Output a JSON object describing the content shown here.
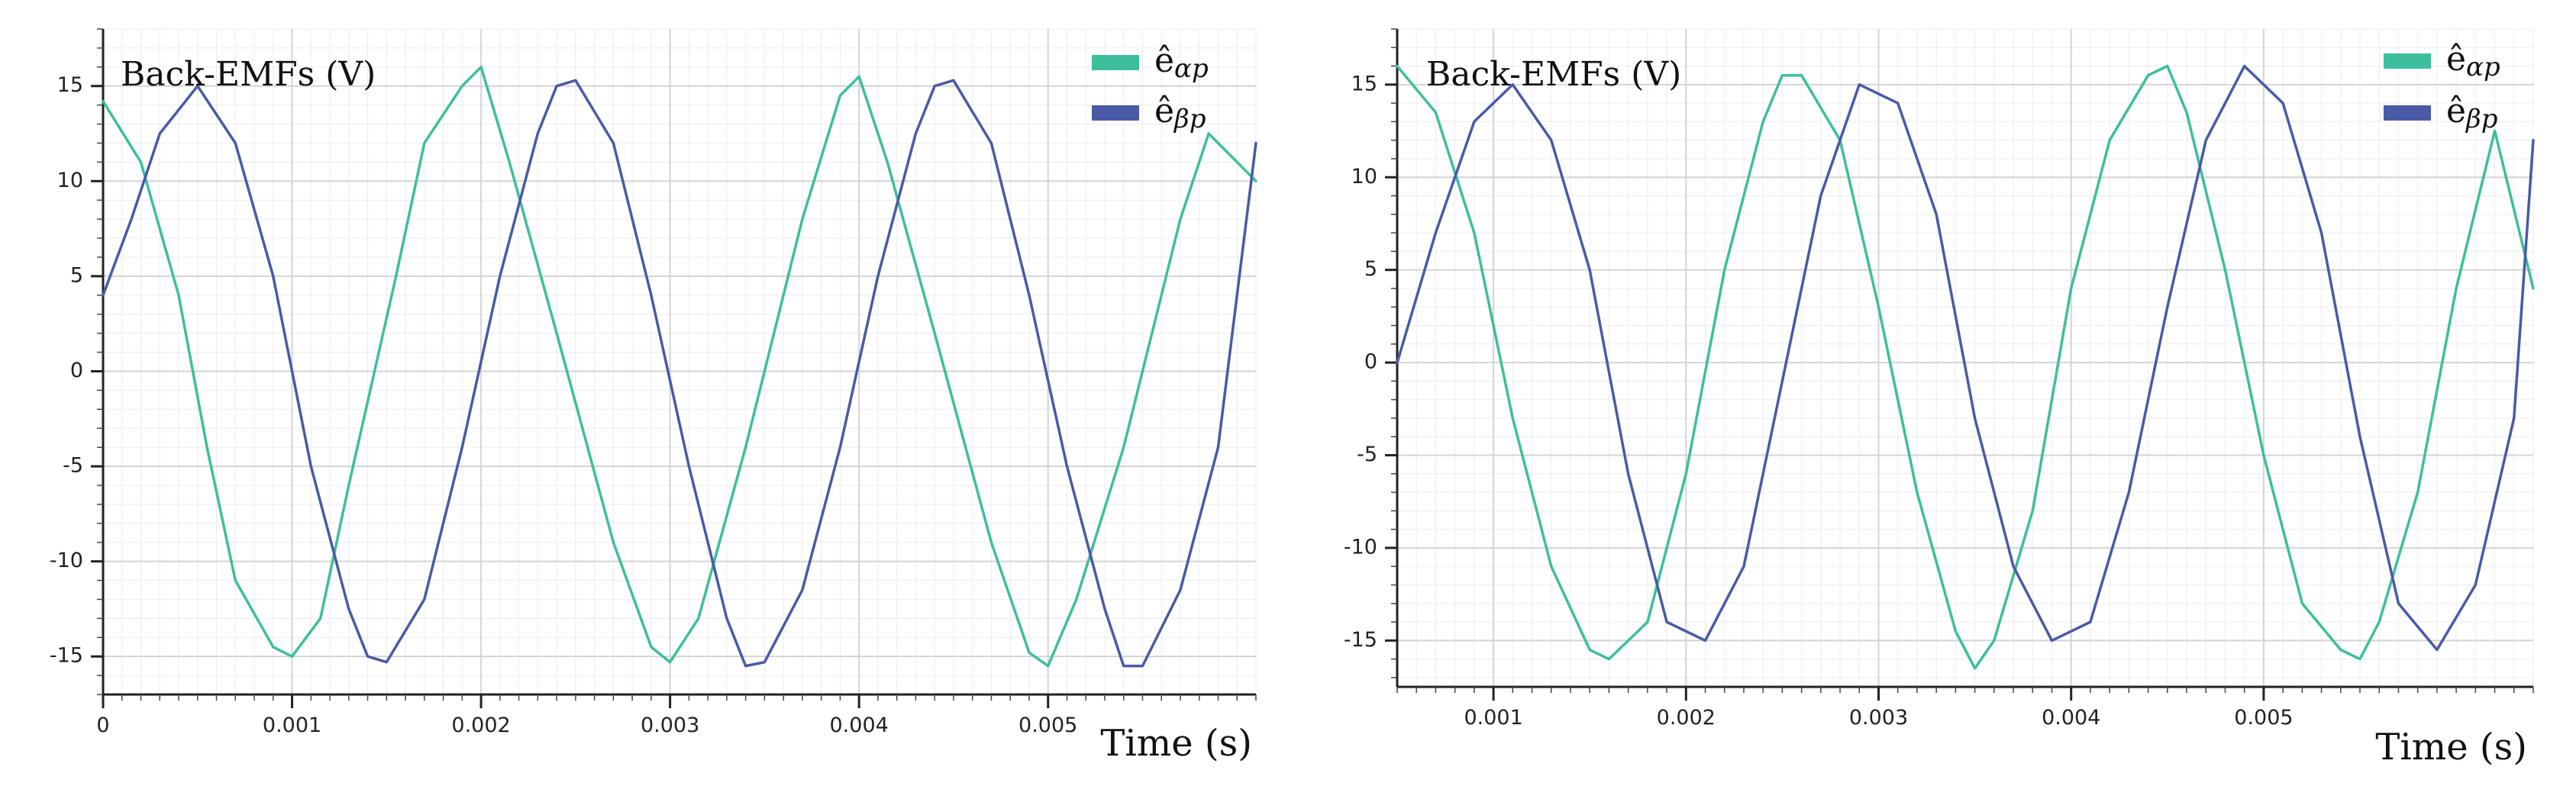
{
  "colors": {
    "alpha": "#3dbf9c",
    "beta": "#4a5aa6"
  },
  "chart_data": [
    {
      "type": "line",
      "title": "Back-EMFs (V)",
      "xlabel": "Time (s)",
      "ylabel": "Back-EMFs (V)",
      "xlim": [
        0,
        0.0061
      ],
      "ylim": [
        -17,
        18
      ],
      "xticks": [
        0,
        0.001,
        0.002,
        0.003,
        0.004,
        0.005
      ],
      "xtick_labels": [
        "0",
        "0.001",
        "0.002",
        "0.003",
        "0.004",
        "0.005"
      ],
      "yticks": [
        15,
        10,
        5,
        0,
        -5,
        -10,
        -15
      ],
      "ytick_labels": [
        "15",
        "10",
        "5",
        "0",
        "-5",
        "-10",
        "-15"
      ],
      "legend_position": "top-right",
      "series": [
        {
          "name": "ê_αp",
          "legend_base": "ê",
          "legend_sub": "αp",
          "color_key": "alpha",
          "x": [
            0,
            0.0002,
            0.0004,
            0.00055,
            0.0007,
            0.0009,
            0.001,
            0.00115,
            0.0013,
            0.00155,
            0.0017,
            0.0019,
            0.002,
            0.00215,
            0.0024,
            0.0027,
            0.0029,
            0.003,
            0.00315,
            0.0034,
            0.0037,
            0.0039,
            0.004,
            0.00415,
            0.0044,
            0.0047,
            0.0049,
            0.005,
            0.00515,
            0.0054,
            0.0057,
            0.00585,
            0.0061
          ],
          "y": [
            14.2,
            11,
            4,
            -4,
            -11,
            -14.5,
            -15,
            -13,
            -6,
            5,
            12,
            15,
            16,
            11,
            2,
            -9,
            -14.5,
            -15.3,
            -13,
            -4,
            8,
            14.5,
            15.5,
            11,
            2,
            -9,
            -14.8,
            -15.5,
            -12,
            -4,
            8,
            12.5,
            10
          ]
        },
        {
          "name": "ê_βp",
          "legend_base": "ê",
          "legend_sub": "βp",
          "color_key": "beta",
          "x": [
            0,
            0.00015,
            0.0003,
            0.0005,
            0.0007,
            0.0009,
            0.0011,
            0.0013,
            0.0014,
            0.0015,
            0.0017,
            0.0019,
            0.0021,
            0.0023,
            0.0024,
            0.0025,
            0.0027,
            0.0029,
            0.0031,
            0.0033,
            0.0034,
            0.0035,
            0.0037,
            0.0039,
            0.0041,
            0.0043,
            0.0044,
            0.0045,
            0.0047,
            0.0049,
            0.0051,
            0.0053,
            0.0054,
            0.0055,
            0.0057,
            0.0059,
            0.0061
          ],
          "y": [
            4,
            8,
            12.5,
            15,
            12,
            5,
            -5,
            -12.5,
            -15,
            -15.3,
            -12,
            -4,
            5,
            12.5,
            15,
            15.3,
            12,
            4,
            -5,
            -13,
            -15.5,
            -15.3,
            -11.5,
            -4,
            5,
            12.5,
            15,
            15.3,
            12,
            4,
            -5,
            -12.5,
            -15.5,
            -15.5,
            -11.5,
            -4,
            12
          ]
        }
      ]
    },
    {
      "type": "line",
      "title": "Back-EMFs (V)",
      "xlabel": "Time (s)",
      "ylabel": "Back-EMFs (V)",
      "xlim": [
        0.0005,
        0.0064
      ],
      "ylim": [
        -17.5,
        18
      ],
      "xticks": [
        0.001,
        0.002,
        0.003,
        0.004,
        0.005
      ],
      "xtick_labels": [
        "0.001",
        "0.002",
        "0.003",
        "0.004",
        "0.005"
      ],
      "yticks": [
        15,
        10,
        5,
        0,
        -5,
        -10,
        -15
      ],
      "ytick_labels": [
        "15",
        "10",
        "5",
        "0",
        "-5",
        "-10",
        "-15"
      ],
      "legend_position": "top-right",
      "series": [
        {
          "name": "ê_αp",
          "legend_base": "ê",
          "legend_sub": "αp",
          "color_key": "alpha",
          "x": [
            0.0005,
            0.0007,
            0.0009,
            0.0011,
            0.0013,
            0.0015,
            0.0016,
            0.0018,
            0.002,
            0.0022,
            0.0024,
            0.0025,
            0.0026,
            0.0028,
            0.003,
            0.0032,
            0.0034,
            0.0035,
            0.0036,
            0.0038,
            0.004,
            0.0042,
            0.0044,
            0.0045,
            0.0046,
            0.0048,
            0.005,
            0.0052,
            0.0054,
            0.0055,
            0.0056,
            0.0058,
            0.006,
            0.0062,
            0.0064
          ],
          "y": [
            16,
            13.5,
            7,
            -3,
            -11,
            -15.5,
            -16,
            -14,
            -6,
            5,
            13,
            15.5,
            15.5,
            12,
            3,
            -7,
            -14.5,
            -16.5,
            -15,
            -8,
            4,
            12,
            15.5,
            16,
            13.5,
            5,
            -5,
            -13,
            -15.5,
            -16,
            -14,
            -7,
            4,
            12.5,
            4
          ]
        },
        {
          "name": "ê_βp",
          "legend_base": "ê",
          "legend_sub": "βp",
          "color_key": "beta",
          "x": [
            0.0005,
            0.0007,
            0.0009,
            0.0011,
            0.0013,
            0.0015,
            0.0017,
            0.0019,
            0.0021,
            0.0023,
            0.0025,
            0.0027,
            0.0029,
            0.0031,
            0.0033,
            0.0035,
            0.0037,
            0.0039,
            0.0041,
            0.0043,
            0.0045,
            0.0047,
            0.0049,
            0.0051,
            0.0053,
            0.0055,
            0.0057,
            0.0059,
            0.0061,
            0.0063,
            0.0064
          ],
          "y": [
            0,
            7,
            13,
            15,
            12,
            5,
            -6,
            -14,
            -15,
            -11,
            -1,
            9,
            15,
            14,
            8,
            -3,
            -11,
            -15,
            -14,
            -7,
            3,
            12,
            16,
            14,
            7,
            -4,
            -13,
            -15.5,
            -12,
            -3,
            12
          ]
        }
      ]
    }
  ]
}
